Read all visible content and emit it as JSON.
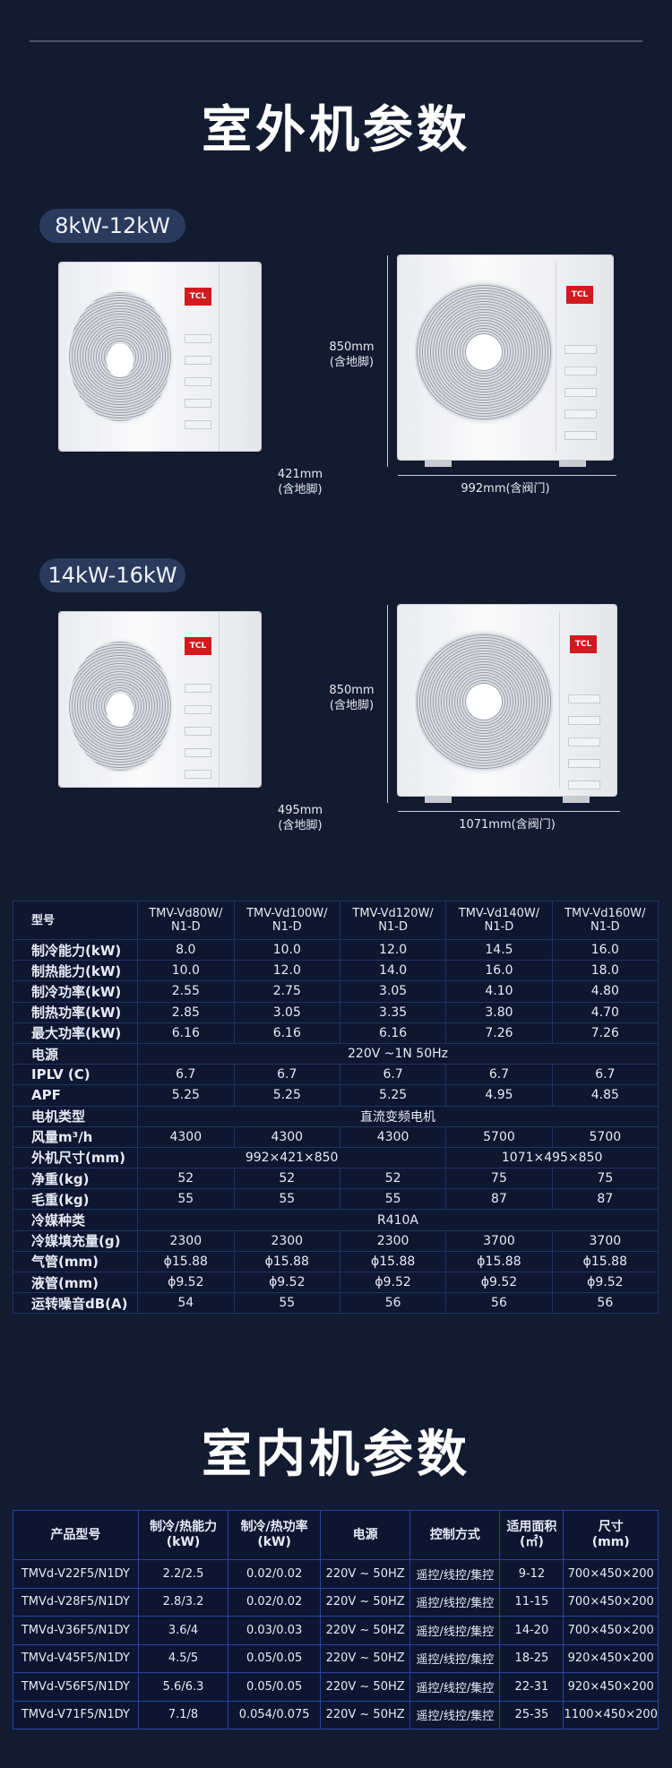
{
  "outdoor": {
    "title": "室外机参数",
    "groups": [
      {
        "label": "8kW-12kW",
        "height": "850mm",
        "height_note": "(含地脚)",
        "depth": "421mm",
        "depth_note": "(含地脚)",
        "width": "992mm(含阀门)",
        "logo": "TCL"
      },
      {
        "label": "14kW-16kW",
        "height": "850mm",
        "height_note": "(含地脚)",
        "depth": "495mm",
        "depth_note": "(含地脚)",
        "width": "1071mm(含阀门)",
        "logo": "TCL"
      }
    ],
    "table": {
      "header": {
        "label": "型号",
        "models": [
          [
            "TMV-Vd80W/",
            "N1-D"
          ],
          [
            "TMV-Vd100W/",
            "N1-D"
          ],
          [
            "TMV-Vd120W/",
            "N1-D"
          ],
          [
            "TMV-Vd140W/",
            "N1-D"
          ],
          [
            "TMV-Vd160W/",
            "N1-D"
          ]
        ]
      },
      "rows": [
        {
          "label": "制冷能力(kW)",
          "values": [
            "8.0",
            "10.0",
            "12.0",
            "14.5",
            "16.0"
          ]
        },
        {
          "label": "制热能力(kW)",
          "values": [
            "10.0",
            "12.0",
            "14.0",
            "16.0",
            "18.0"
          ]
        },
        {
          "label": "制冷功率(kW)",
          "values": [
            "2.55",
            "2.75",
            "3.05",
            "4.10",
            "4.80"
          ]
        },
        {
          "label": "制热功率(kW)",
          "values": [
            "2.85",
            "3.05",
            "3.35",
            "3.80",
            "4.70"
          ]
        },
        {
          "label": "最大功率(kW)",
          "values": [
            "6.16",
            "6.16",
            "6.16",
            "7.26",
            "7.26"
          ]
        },
        {
          "label": "电源",
          "merged": "220V ~1N 50Hz"
        },
        {
          "label": "IPLV (C)",
          "values": [
            "6.7",
            "6.7",
            "6.7",
            "6.7",
            "6.7"
          ]
        },
        {
          "label": "APF",
          "values": [
            "5.25",
            "5.25",
            "5.25",
            "4.95",
            "4.85"
          ]
        },
        {
          "label": "电机类型",
          "merged": "直流变频电机"
        },
        {
          "label": "风量m³/h",
          "values": [
            "4300",
            "4300",
            "4300",
            "5700",
            "5700"
          ]
        },
        {
          "label": "外机尺寸(mm)",
          "split": [
            "992×421×850",
            "1071×495×850"
          ]
        },
        {
          "label": "净重(kg)",
          "values": [
            "52",
            "52",
            "52",
            "75",
            "75"
          ]
        },
        {
          "label": "毛重(kg)",
          "values": [
            "55",
            "55",
            "55",
            "87",
            "87"
          ]
        },
        {
          "label": "冷媒种类",
          "merged": "R410A"
        },
        {
          "label": "冷媒填充量(g)",
          "values": [
            "2300",
            "2300",
            "2300",
            "3700",
            "3700"
          ]
        },
        {
          "label": "气管(mm)",
          "values": [
            "ϕ15.88",
            "ϕ15.88",
            "ϕ15.88",
            "ϕ15.88",
            "ϕ15.88"
          ]
        },
        {
          "label": "液管(mm)",
          "values": [
            "ϕ9.52",
            "ϕ9.52",
            "ϕ9.52",
            "ϕ9.52",
            "ϕ9.52"
          ]
        },
        {
          "label": "运转噪音dB(A)",
          "values": [
            "54",
            "55",
            "56",
            "56",
            "56"
          ]
        }
      ]
    }
  },
  "indoor": {
    "title": "室内机参数",
    "table": {
      "headers": [
        [
          "产品型号"
        ],
        [
          "制冷/热能力",
          "(kW)"
        ],
        [
          "制冷/热功率",
          "(kW)"
        ],
        [
          "电源"
        ],
        [
          "控制方式"
        ],
        [
          "适用面积",
          "(㎡)"
        ],
        [
          "尺寸",
          "(mm)"
        ]
      ],
      "rows": [
        [
          "TMVd-V22F5/N1DY",
          "2.2/2.5",
          "0.02/0.02",
          "220V ~ 50HZ",
          "遥控/线控/集控",
          "9-12",
          "700×450×200"
        ],
        [
          "TMVd-V28F5/N1DY",
          "2.8/3.2",
          "0.02/0.02",
          "220V ~ 50HZ",
          "遥控/线控/集控",
          "11-15",
          "700×450×200"
        ],
        [
          "TMVd-V36F5/N1DY",
          "3.6/4",
          "0.03/0.03",
          "220V ~ 50HZ",
          "遥控/线控/集控",
          "14-20",
          "700×450×200"
        ],
        [
          "TMVd-V45F5/N1DY",
          "4.5/5",
          "0.05/0.05",
          "220V ~ 50HZ",
          "遥控/线控/集控",
          "18-25",
          "920×450×200"
        ],
        [
          "TMVd-V56F5/N1DY",
          "5.6/6.3",
          "0.05/0.05",
          "220V ~ 50HZ",
          "遥控/线控/集控",
          "22-31",
          "920×450×200"
        ],
        [
          "TMVd-V71F5/N1DY",
          "7.1/8",
          "0.054/0.075",
          "220V ~ 50HZ",
          "遥控/线控/集控",
          "25-35",
          "1100×450×200"
        ]
      ]
    }
  },
  "colors": {
    "background": "#131b31",
    "logo_red": "#d21a1f",
    "grid": "#2545a8"
  }
}
